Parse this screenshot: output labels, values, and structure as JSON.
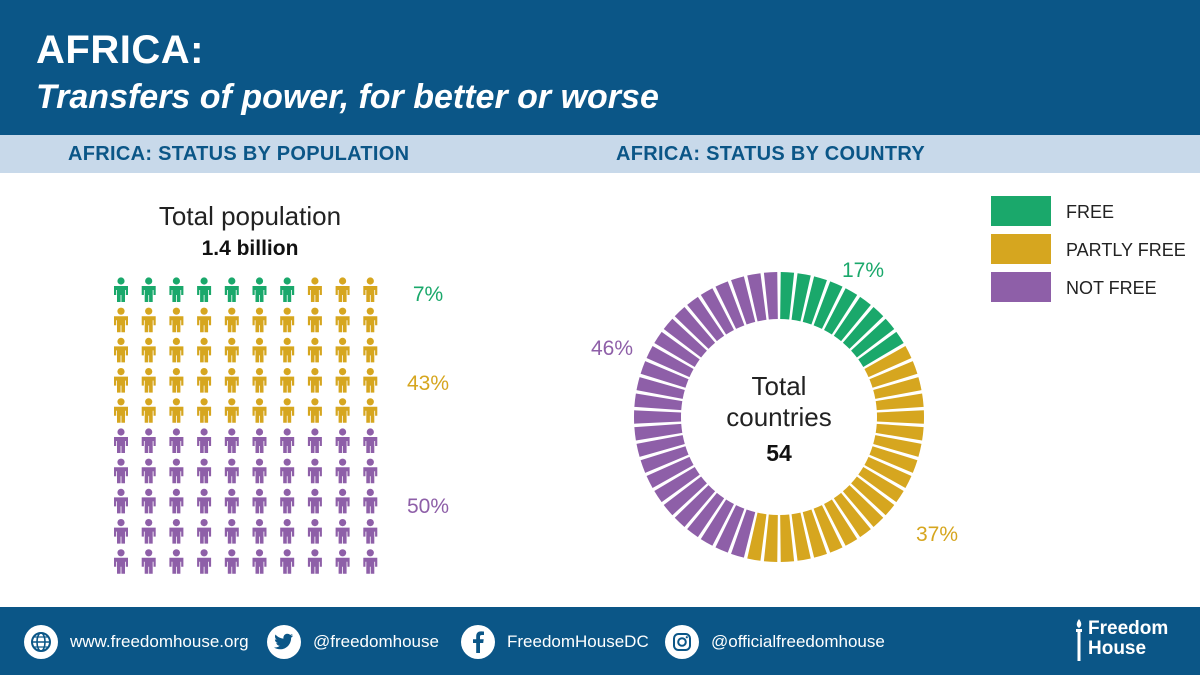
{
  "header": {
    "title": "AFRICA:",
    "subtitle": "Transfers of power, for better or worse"
  },
  "sections": {
    "left": "AFRICA: STATUS BY POPULATION",
    "right": "AFRICA: STATUS BY COUNTRY"
  },
  "colors": {
    "free": "#1aa86b",
    "partly_free": "#d6a61f",
    "not_free": "#8e5fa8",
    "header_bg": "#0b5687",
    "section_bg": "#c8d9ea"
  },
  "chart_data": [
    {
      "type": "pictogram",
      "title": "Total population",
      "subtitle": "1.4 billion",
      "total_icons": 100,
      "series": [
        {
          "name": "FREE",
          "value": 7,
          "label": "7%"
        },
        {
          "name": "PARTLY FREE",
          "value": 43,
          "label": "43%"
        },
        {
          "name": "NOT FREE",
          "value": 50,
          "label": "50%"
        }
      ]
    },
    {
      "type": "pie",
      "variant": "donut",
      "center_label": "Total\ncountries",
      "center_value": "54",
      "legend_position": "top-right",
      "series": [
        {
          "name": "FREE",
          "value": 9,
          "label": "17%"
        },
        {
          "name": "PARTLY FREE",
          "value": 20,
          "label": "37%"
        },
        {
          "name": "NOT FREE",
          "value": 25,
          "label": "46%"
        }
      ]
    }
  ],
  "footer": {
    "website": "www.freedomhouse.org",
    "twitter": "@freedomhouse",
    "facebook": "FreedomHouseDC",
    "instagram": "@officialfreedomhouse",
    "logo_line1": "Freedom",
    "logo_line2": "House"
  },
  "icons": {
    "website": "globe-icon",
    "twitter": "twitter-icon",
    "facebook": "facebook-icon",
    "instagram": "instagram-icon",
    "logo": "torch-icon"
  }
}
